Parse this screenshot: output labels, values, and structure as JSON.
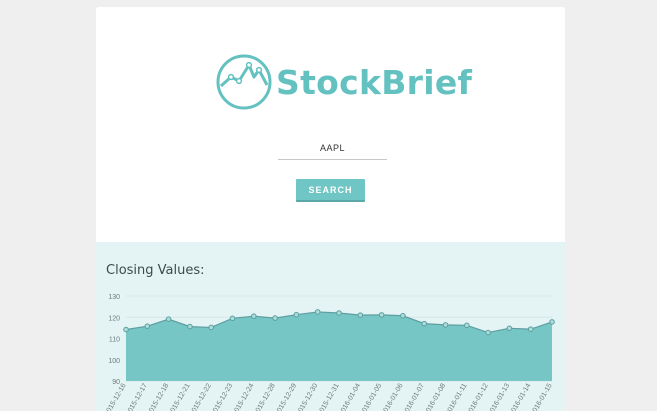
{
  "app": {
    "name": "StockBrief"
  },
  "search": {
    "value": "AAPL",
    "button_label": "SEARCH"
  },
  "results": {
    "title": "Closing Values:"
  },
  "colors": {
    "page_bg": "#efefef",
    "card_bg": "#ffffff",
    "brand": "#63c1c0",
    "button_bg": "#6fc6c4",
    "results_bg": "#e4f4f4",
    "area_fill": "#76c6c5",
    "area_stroke": "#5e9ea0",
    "point_fill": "#a9dcdb",
    "grid": "#d7e6e6",
    "tick_text": "#6d7a7b"
  },
  "chart_data": {
    "type": "area",
    "title": "Closing Values:",
    "ylim": [
      90,
      130
    ],
    "yticks": [
      90,
      100,
      110,
      120,
      130
    ],
    "x": [
      "2015-12-16",
      "2015-12-17",
      "2015-12-18",
      "2015-12-21",
      "2015-12-22",
      "2015-12-23",
      "2015-12-24",
      "2015-12-28",
      "2015-12-29",
      "2015-12-30",
      "2015-12-31",
      "2016-01-04",
      "2016-01-05",
      "2016-01-06",
      "2016-01-07",
      "2016-01-08",
      "2016-01-11",
      "2016-01-12",
      "2016-01-13",
      "2016-01-14",
      "2016-01-15"
    ],
    "values": [
      114.2,
      115.8,
      119.1,
      115.6,
      115.2,
      119.5,
      120.5,
      119.6,
      121.2,
      122.5,
      122.0,
      121.0,
      121.1,
      120.7,
      117.0,
      116.4,
      116.2,
      112.8,
      114.8,
      114.4,
      117.8
    ],
    "grid": true,
    "legend": "none"
  }
}
